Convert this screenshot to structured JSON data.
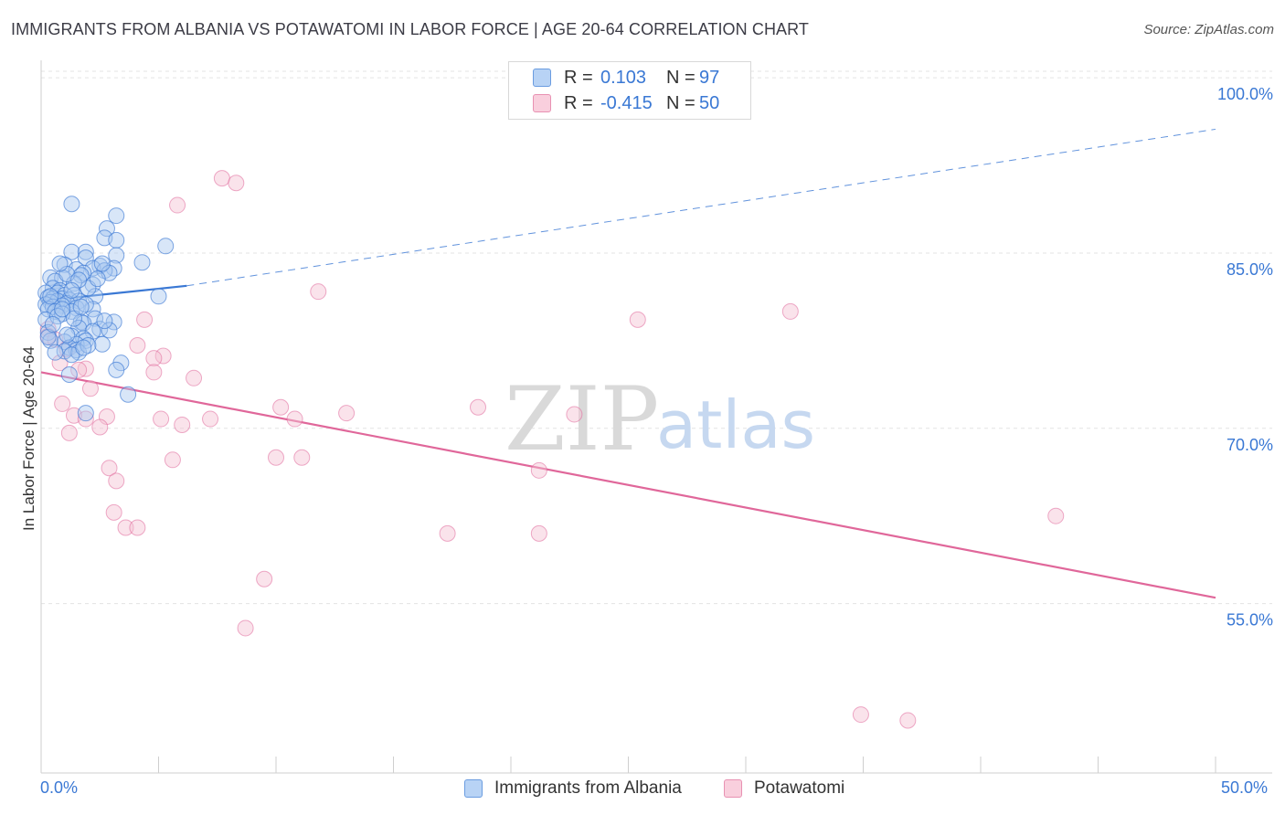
{
  "title": "IMMIGRANTS FROM ALBANIA VS POTAWATOMI IN LABOR FORCE | AGE 20-64 CORRELATION CHART",
  "source": "Source: ZipAtlas.com",
  "legend_top": {
    "row1": {
      "r_label": "R =",
      "r_value": "0.103",
      "n_label": "N =",
      "n_value": "97"
    },
    "row2": {
      "r_label": "R =",
      "r_value": "-0.415",
      "n_label": "N =",
      "n_value": "50"
    }
  },
  "legend_bottom": {
    "series1": "Immigrants from Albania",
    "series2": "Potawatomi"
  },
  "y_axis_title": "In Labor Force | Age 20-64",
  "x_axis_labels": {
    "min": "0.0%",
    "max": "50.0%"
  },
  "watermark": {
    "zip": "ZIP",
    "atlas": "atlas"
  },
  "colors": {
    "blue": "#3a78d4",
    "blue_fill": "#a9c8f0",
    "pink": "#e0679a",
    "pink_fill": "#f5c0d3",
    "grid": "#e3e3e3"
  },
  "chart_data": {
    "type": "scatter",
    "title": "IMMIGRANTS FROM ALBANIA VS POTAWATOMI IN LABOR FORCE | AGE 20-64 CORRELATION CHART",
    "xlabel": "",
    "ylabel": "In Labor Force | Age 20-64",
    "xlim": [
      0,
      50
    ],
    "ylim": [
      40.5,
      101.5
    ],
    "y_ticks": [
      {
        "value": 100,
        "label": "100.0%"
      },
      {
        "value": 85,
        "label": "85.0%"
      },
      {
        "value": 70,
        "label": "70.0%"
      },
      {
        "value": 55,
        "label": "55.0%"
      }
    ],
    "grid": true,
    "legend_position": "top-center",
    "series": [
      {
        "name": "Immigrants from Albania",
        "color": "#3a78d4",
        "R": 0.103,
        "N": 97,
        "trend": {
          "x0": 0,
          "y0": 80.9,
          "x1": 6.2,
          "y1": 82.2,
          "extended_x1": 50,
          "extended_y1": 95.6
        },
        "points": [
          [
            1.3,
            89.2
          ],
          [
            3.2,
            88.2
          ],
          [
            2.8,
            87.1
          ],
          [
            5.3,
            85.6
          ],
          [
            2.7,
            86.3
          ],
          [
            3.2,
            86.1
          ],
          [
            1.3,
            85.1
          ],
          [
            1.9,
            85.1
          ],
          [
            3.2,
            84.8
          ],
          [
            1.9,
            84.6
          ],
          [
            4.3,
            84.2
          ],
          [
            1.0,
            84.0
          ],
          [
            2.5,
            83.9
          ],
          [
            3.1,
            83.7
          ],
          [
            2.2,
            83.7
          ],
          [
            1.5,
            83.6
          ],
          [
            2.7,
            83.5
          ],
          [
            1.8,
            83.3
          ],
          [
            2.9,
            83.3
          ],
          [
            1.7,
            83.1
          ],
          [
            0.4,
            82.9
          ],
          [
            0.9,
            82.9
          ],
          [
            0.6,
            82.6
          ],
          [
            1.4,
            82.4
          ],
          [
            2.2,
            82.3
          ],
          [
            0.5,
            82.0
          ],
          [
            0.8,
            81.8
          ],
          [
            0.2,
            81.6
          ],
          [
            0.7,
            81.6
          ],
          [
            1.0,
            81.4
          ],
          [
            1.4,
            81.4
          ],
          [
            5.0,
            81.3
          ],
          [
            2.3,
            81.3
          ],
          [
            0.3,
            81.2
          ],
          [
            0.9,
            81.1
          ],
          [
            0.5,
            81.1
          ],
          [
            1.2,
            81.0
          ],
          [
            0.7,
            80.9
          ],
          [
            1.6,
            80.9
          ],
          [
            0.4,
            80.8
          ],
          [
            1.1,
            80.7
          ],
          [
            0.2,
            80.6
          ],
          [
            0.9,
            80.5
          ],
          [
            0.5,
            80.4
          ],
          [
            1.5,
            80.3
          ],
          [
            0.3,
            80.2
          ],
          [
            2.2,
            80.2
          ],
          [
            0.6,
            80.0
          ],
          [
            1.3,
            80.0
          ],
          [
            0.9,
            79.8
          ],
          [
            2.3,
            79.4
          ],
          [
            0.2,
            79.3
          ],
          [
            1.7,
            79.1
          ],
          [
            1.8,
            79.0
          ],
          [
            3.1,
            79.1
          ],
          [
            1.6,
            78.6
          ],
          [
            2.5,
            78.5
          ],
          [
            2.9,
            78.4
          ],
          [
            2.2,
            78.3
          ],
          [
            0.3,
            78.2
          ],
          [
            1.3,
            77.9
          ],
          [
            1.8,
            77.7
          ],
          [
            0.4,
            77.5
          ],
          [
            1.9,
            77.5
          ],
          [
            1.0,
            77.4
          ],
          [
            1.5,
            77.2
          ],
          [
            2.6,
            77.2
          ],
          [
            1.2,
            76.9
          ],
          [
            1.5,
            76.7
          ],
          [
            1.0,
            76.6
          ],
          [
            1.6,
            76.5
          ],
          [
            1.3,
            76.3
          ],
          [
            3.4,
            75.6
          ],
          [
            3.2,
            75.0
          ],
          [
            1.2,
            74.6
          ],
          [
            3.7,
            72.9
          ],
          [
            1.9,
            71.3
          ],
          [
            0.6,
            76.5
          ],
          [
            0.3,
            77.8
          ],
          [
            2.0,
            82.0
          ],
          [
            1.1,
            83.2
          ],
          [
            0.8,
            84.1
          ],
          [
            2.4,
            82.8
          ],
          [
            0.7,
            79.6
          ],
          [
            1.9,
            80.6
          ],
          [
            0.5,
            78.9
          ],
          [
            1.4,
            79.4
          ],
          [
            2.7,
            79.2
          ],
          [
            1.6,
            82.7
          ],
          [
            0.9,
            80.2
          ],
          [
            1.3,
            81.8
          ],
          [
            2.0,
            77.1
          ],
          [
            0.4,
            81.3
          ],
          [
            1.7,
            80.4
          ],
          [
            2.6,
            84.1
          ],
          [
            1.1,
            78.0
          ],
          [
            1.8,
            76.9
          ]
        ]
      },
      {
        "name": "Potawatomi",
        "color": "#e0679a",
        "R": -0.415,
        "N": 50,
        "trend": {
          "x0": 0,
          "y0": 74.8,
          "x1": 50,
          "y1": 55.5
        },
        "points": [
          [
            7.7,
            91.4
          ],
          [
            8.3,
            91.0
          ],
          [
            5.8,
            89.1
          ],
          [
            11.8,
            81.7
          ],
          [
            31.9,
            80.0
          ],
          [
            25.4,
            79.3
          ],
          [
            4.4,
            79.3
          ],
          [
            0.3,
            78.5
          ],
          [
            0.3,
            77.9
          ],
          [
            0.6,
            77.6
          ],
          [
            4.1,
            77.1
          ],
          [
            1.1,
            76.8
          ],
          [
            5.2,
            76.2
          ],
          [
            4.8,
            76.0
          ],
          [
            0.8,
            75.6
          ],
          [
            1.9,
            75.1
          ],
          [
            4.8,
            74.8
          ],
          [
            6.5,
            74.3
          ],
          [
            18.6,
            71.8
          ],
          [
            10.2,
            71.8
          ],
          [
            13.0,
            71.3
          ],
          [
            22.7,
            71.2
          ],
          [
            1.4,
            71.1
          ],
          [
            2.8,
            71.0
          ],
          [
            10.8,
            70.8
          ],
          [
            7.2,
            70.8
          ],
          [
            5.1,
            70.8
          ],
          [
            1.9,
            70.8
          ],
          [
            6.0,
            70.3
          ],
          [
            2.5,
            70.1
          ],
          [
            1.2,
            69.6
          ],
          [
            10.0,
            67.5
          ],
          [
            11.1,
            67.5
          ],
          [
            5.6,
            67.3
          ],
          [
            2.9,
            66.6
          ],
          [
            3.2,
            65.5
          ],
          [
            21.2,
            66.4
          ],
          [
            3.1,
            62.8
          ],
          [
            43.2,
            62.5
          ],
          [
            3.6,
            61.5
          ],
          [
            4.1,
            61.5
          ],
          [
            17.3,
            61.0
          ],
          [
            21.2,
            61.0
          ],
          [
            9.5,
            57.1
          ],
          [
            8.7,
            52.9
          ],
          [
            34.9,
            45.5
          ],
          [
            36.9,
            45.0
          ],
          [
            1.6,
            75.0
          ],
          [
            0.9,
            72.1
          ],
          [
            2.1,
            73.4
          ]
        ]
      }
    ]
  }
}
